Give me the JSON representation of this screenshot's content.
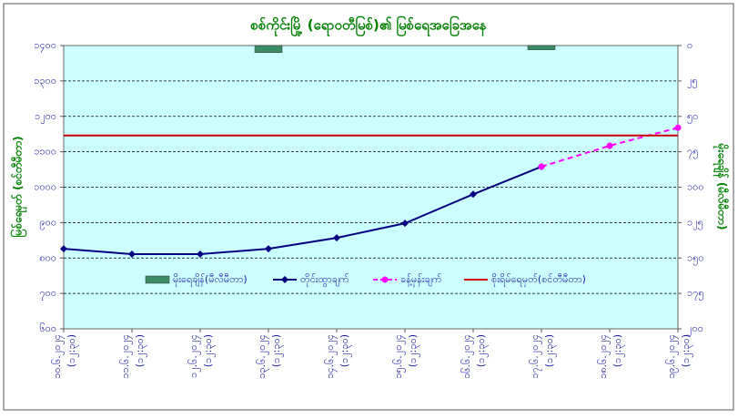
{
  "chart_data": {
    "type": "line",
    "title": "စစ်ကိုင်းမြို့ (ရောဝတီမြစ်)၏ မြစ်ရေအခြေအနေ",
    "y_label": "မြစ်ရေမှတ် (စင်တီမီတာ)",
    "y2_label": "မိုးရေချိန် (မီလီမီတာ)",
    "categories": [
      "၁၀.၆.၂၀၂၄",
      "၁၁.၆.၂၀၂၄",
      "၁၂.၆.၂၀၂၄",
      "၁၃.၆.၂၀၂၄",
      "၁၄.၆.၂၀၂၄",
      "၁၅.၆.၂၀၂၄",
      "၁၆.၆.၂၀၂၄",
      "၁၇.၆.၂၀၂၄",
      "၁၈.၆.၂၀၂၄",
      "၁၉.၆.၂၀၂၄"
    ],
    "category_times": [
      "(၁၂:၃၀)",
      "(၁၂:၃၀)",
      "(၁၂:၃၀)",
      "(၁၂:၃၀)",
      "(၁၂:၃၀)",
      "(၁၂:၃၀)",
      "(၁၂:၃၀)",
      "(၁၂:၃၀)",
      "(၁၂:၃၀)",
      "(၁၂:၃၀)"
    ],
    "ylim": [
      600,
      1400
    ],
    "yticks": [
      {
        "value": 600,
        "label": "၆၀၀"
      },
      {
        "value": 700,
        "label": "၇၀၀"
      },
      {
        "value": 800,
        "label": "၈၀၀"
      },
      {
        "value": 900,
        "label": "၉၀၀"
      },
      {
        "value": 1000,
        "label": "၁၀၀၀"
      },
      {
        "value": 1100,
        "label": "၁၁၀၀"
      },
      {
        "value": 1200,
        "label": "၁၂၀၀"
      },
      {
        "value": 1300,
        "label": "၁၃၀၀"
      },
      {
        "value": 1400,
        "label": "၁၄၀၀"
      }
    ],
    "y2lim": [
      200,
      0
    ],
    "y2ticks": [
      {
        "value": 0,
        "label": "၀"
      },
      {
        "value": 25,
        "label": "၂၅"
      },
      {
        "value": 50,
        "label": "၅၀"
      },
      {
        "value": 75,
        "label": "၇၅"
      },
      {
        "value": 100,
        "label": "၁၀၀"
      },
      {
        "value": 125,
        "label": "၁၂၅"
      },
      {
        "value": 150,
        "label": "၁၅၀"
      },
      {
        "value": 175,
        "label": "၁၇၅"
      },
      {
        "value": 200,
        "label": "၂၀၀"
      }
    ],
    "grid": true,
    "series": [
      {
        "name": "မိုးရေချိန်(မီလီမီတာ)",
        "type": "bar",
        "axis": "y2",
        "color": "#3c8c64",
        "values": [
          0,
          0,
          0,
          5,
          0,
          0,
          0,
          3,
          0,
          0
        ]
      },
      {
        "name": "တိုင်းထွာချက်",
        "type": "line",
        "marker": "diamond",
        "color": "#000080",
        "values": [
          826,
          811,
          811,
          826,
          857,
          898,
          980,
          1058,
          null,
          null
        ]
      },
      {
        "name": "ခန့်မှန်းချက်",
        "type": "line",
        "marker": "circle",
        "dashed": true,
        "color": "#ff00ff",
        "values": [
          null,
          null,
          null,
          null,
          null,
          null,
          null,
          1058,
          1117,
          1168
        ]
      },
      {
        "name": "စိုးရိမ်ရေမှတ်(စင်တီမီတာ)",
        "type": "line",
        "marker": "none",
        "color": "#cc0000",
        "values": [
          1146,
          1146,
          1146,
          1146,
          1146,
          1146,
          1146,
          1146,
          1146,
          1146
        ]
      }
    ]
  }
}
